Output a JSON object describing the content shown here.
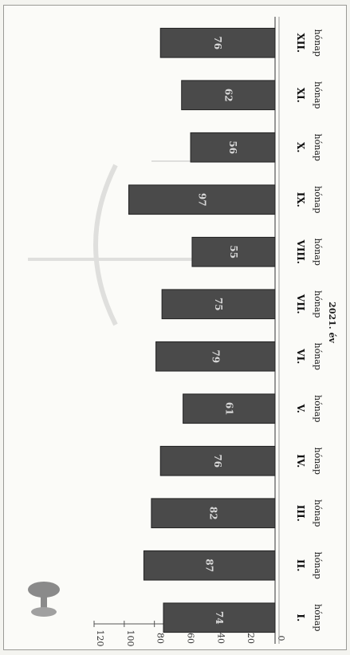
{
  "chart_data": {
    "type": "bar",
    "orientation": "vertical, figure rotated 90 degrees clockwise",
    "xlabel": "2021. év",
    "categories": [
      {
        "numeral": "I.",
        "word": "hónap"
      },
      {
        "numeral": "II.",
        "word": "hónap"
      },
      {
        "numeral": "III.",
        "word": "hónap"
      },
      {
        "numeral": "IV.",
        "word": "hónap"
      },
      {
        "numeral": "V.",
        "word": "hónap"
      },
      {
        "numeral": "VI.",
        "word": "hónap"
      },
      {
        "numeral": "VII.",
        "word": "hónap"
      },
      {
        "numeral": "VIII.",
        "word": "hónap"
      },
      {
        "numeral": "IX.",
        "word": "hónap"
      },
      {
        "numeral": "X.",
        "word": "hónap"
      },
      {
        "numeral": "XI.",
        "word": "hónap"
      },
      {
        "numeral": "XII.",
        "word": "hónap"
      }
    ],
    "values": [
      74,
      87,
      82,
      76,
      61,
      79,
      75,
      55,
      97,
      56,
      62,
      76
    ],
    "ylim": [
      0,
      120
    ],
    "yticks": [
      "0",
      "20",
      "40",
      "60",
      "80",
      "100",
      "120"
    ],
    "grid": false,
    "bar_color": "#4a4a4a",
    "value_label_color": "#d8d8d8"
  }
}
